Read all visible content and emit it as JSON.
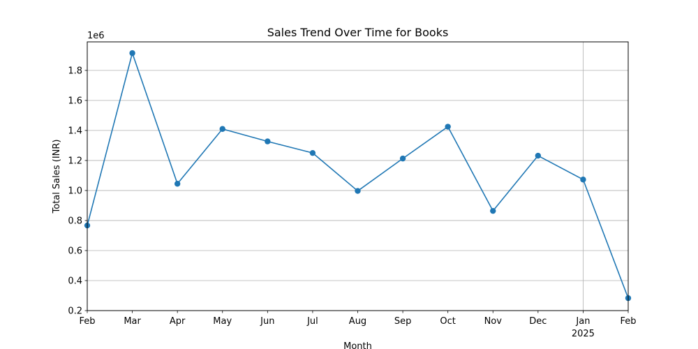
{
  "chart_data": {
    "type": "line",
    "title": "Sales Trend Over Time for Books",
    "xlabel": "Month",
    "ylabel": "Total Sales (INR)",
    "y_offset_text": "1e6",
    "y_multiplier": 1000000,
    "x": [
      "2024-02",
      "2024-03",
      "2024-04",
      "2024-05",
      "2024-06",
      "2024-07",
      "2024-08",
      "2024-09",
      "2024-10",
      "2024-11",
      "2024-12",
      "2025-01",
      "2025-02"
    ],
    "x_tick_labels": [
      "Feb",
      "Mar",
      "Apr",
      "May",
      "Jun",
      "Jul",
      "Aug",
      "Sep",
      "Oct",
      "Nov",
      "Dec",
      "Jan",
      "Feb"
    ],
    "x_tick_sublabels": [
      "",
      "",
      "",
      "",
      "",
      "",
      "",
      "",
      "",
      "",
      "",
      "2025",
      ""
    ],
    "series": [
      {
        "color": "#1f77b4",
        "marker": "circle",
        "values": [
          767000,
          1915000,
          1045000,
          1410000,
          1327000,
          1250000,
          997000,
          1213000,
          1425000,
          864000,
          1232000,
          1073000,
          283000
        ]
      }
    ],
    "ylim": [
      200000,
      1990000
    ],
    "y_ticks": [
      0.2,
      0.4,
      0.6,
      0.8,
      1.0,
      1.2,
      1.4,
      1.6,
      1.8
    ],
    "y_tick_labels": [
      "0.2",
      "0.4",
      "0.6",
      "0.8",
      "1.0",
      "1.2",
      "1.4",
      "1.6",
      "1.8"
    ],
    "grid": true,
    "x_grid_lines_at": [
      "2025-01"
    ]
  }
}
